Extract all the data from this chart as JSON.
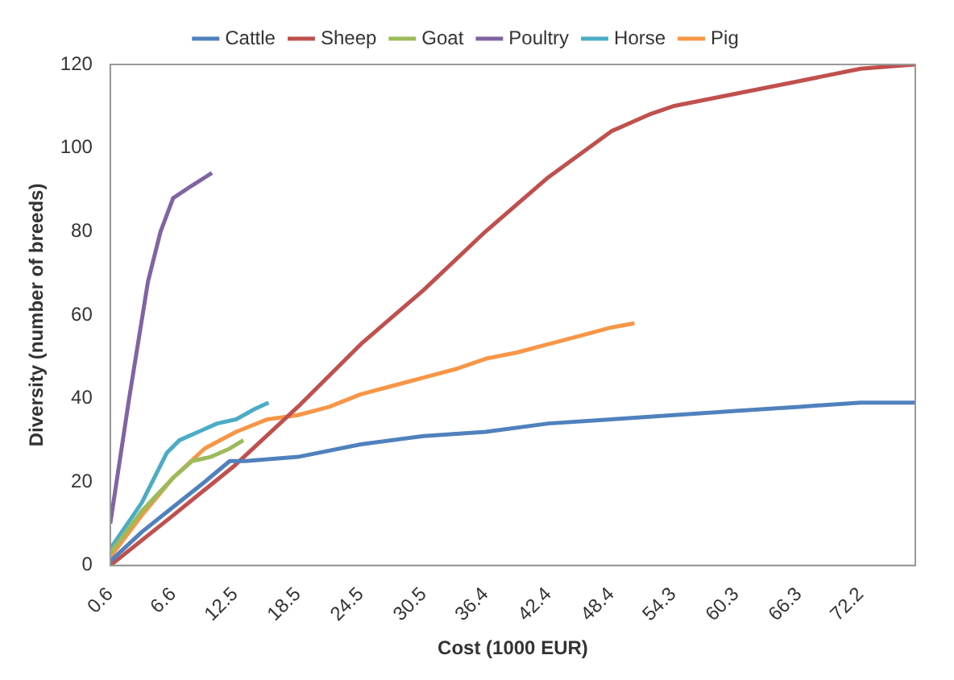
{
  "chart_data": {
    "type": "line",
    "xlabel": "Cost (1000 EUR)",
    "ylabel": "Diversity (number of breeds)",
    "xlim": [
      0.6,
      77.4
    ],
    "xticks": [
      0.6,
      6.6,
      12.5,
      18.5,
      24.5,
      30.5,
      36.4,
      42.4,
      48.4,
      54.3,
      60.3,
      66.3,
      72.2
    ],
    "ylim": [
      0,
      120
    ],
    "yticks": [
      0,
      20,
      40,
      60,
      80,
      100,
      120
    ],
    "grid": false,
    "legend": "top",
    "marker": "none",
    "line_style": "solid",
    "series": [
      {
        "name": "Cattle",
        "color": "#4f81bd",
        "x": [
          0.6,
          3.6,
          6.6,
          9.6,
          12,
          13.5,
          18.5,
          24.5,
          30.5,
          36.4,
          42.4,
          48.4,
          54.3,
          60.3,
          66.3,
          72.2,
          77.4
        ],
        "values": [
          1,
          8,
          14,
          20,
          25,
          25,
          26,
          29,
          31,
          32,
          34,
          35,
          36,
          37,
          38,
          39,
          39
        ]
      },
      {
        "name": "Sheep",
        "color": "#c0504d",
        "x": [
          0.6,
          6.6,
          12.5,
          18.5,
          24.5,
          30.5,
          36.4,
          42.4,
          48.4,
          52,
          54.3,
          60.3,
          66.3,
          72.2,
          77.4
        ],
        "values": [
          0,
          12,
          24,
          38,
          53,
          66,
          80,
          93,
          104,
          108,
          110,
          113,
          116,
          119,
          120
        ]
      },
      {
        "name": "Goat",
        "color": "#9bbb59",
        "x": [
          0.6,
          3.6,
          6.6,
          8.4,
          10.2,
          12,
          13.3
        ],
        "values": [
          3,
          13,
          21,
          25,
          26,
          28,
          30
        ]
      },
      {
        "name": "Poultry",
        "color": "#8064a2",
        "x": [
          0.6,
          2.4,
          4.2,
          5.4,
          6.6,
          8.4,
          10.3
        ],
        "values": [
          10,
          40,
          68,
          80,
          88,
          91,
          94
        ]
      },
      {
        "name": "Horse",
        "color": "#4bacc6",
        "x": [
          0.6,
          3.6,
          6,
          7.2,
          9,
          10.8,
          12.6,
          14.4,
          15.7
        ],
        "values": [
          4,
          15,
          27,
          30,
          32,
          34,
          35,
          37.5,
          39
        ]
      },
      {
        "name": "Pig",
        "color": "#f79646",
        "x": [
          0.6,
          3.6,
          6.6,
          9.6,
          12.6,
          15.6,
          18.5,
          21.5,
          24.5,
          27.5,
          30.5,
          33.5,
          36.4,
          39.4,
          42.4,
          45.4,
          48.4,
          50.6
        ],
        "values": [
          2,
          12,
          21,
          28,
          32,
          35,
          36,
          38,
          41,
          43,
          45,
          47,
          49.5,
          51,
          53,
          55,
          57,
          58
        ]
      }
    ]
  }
}
